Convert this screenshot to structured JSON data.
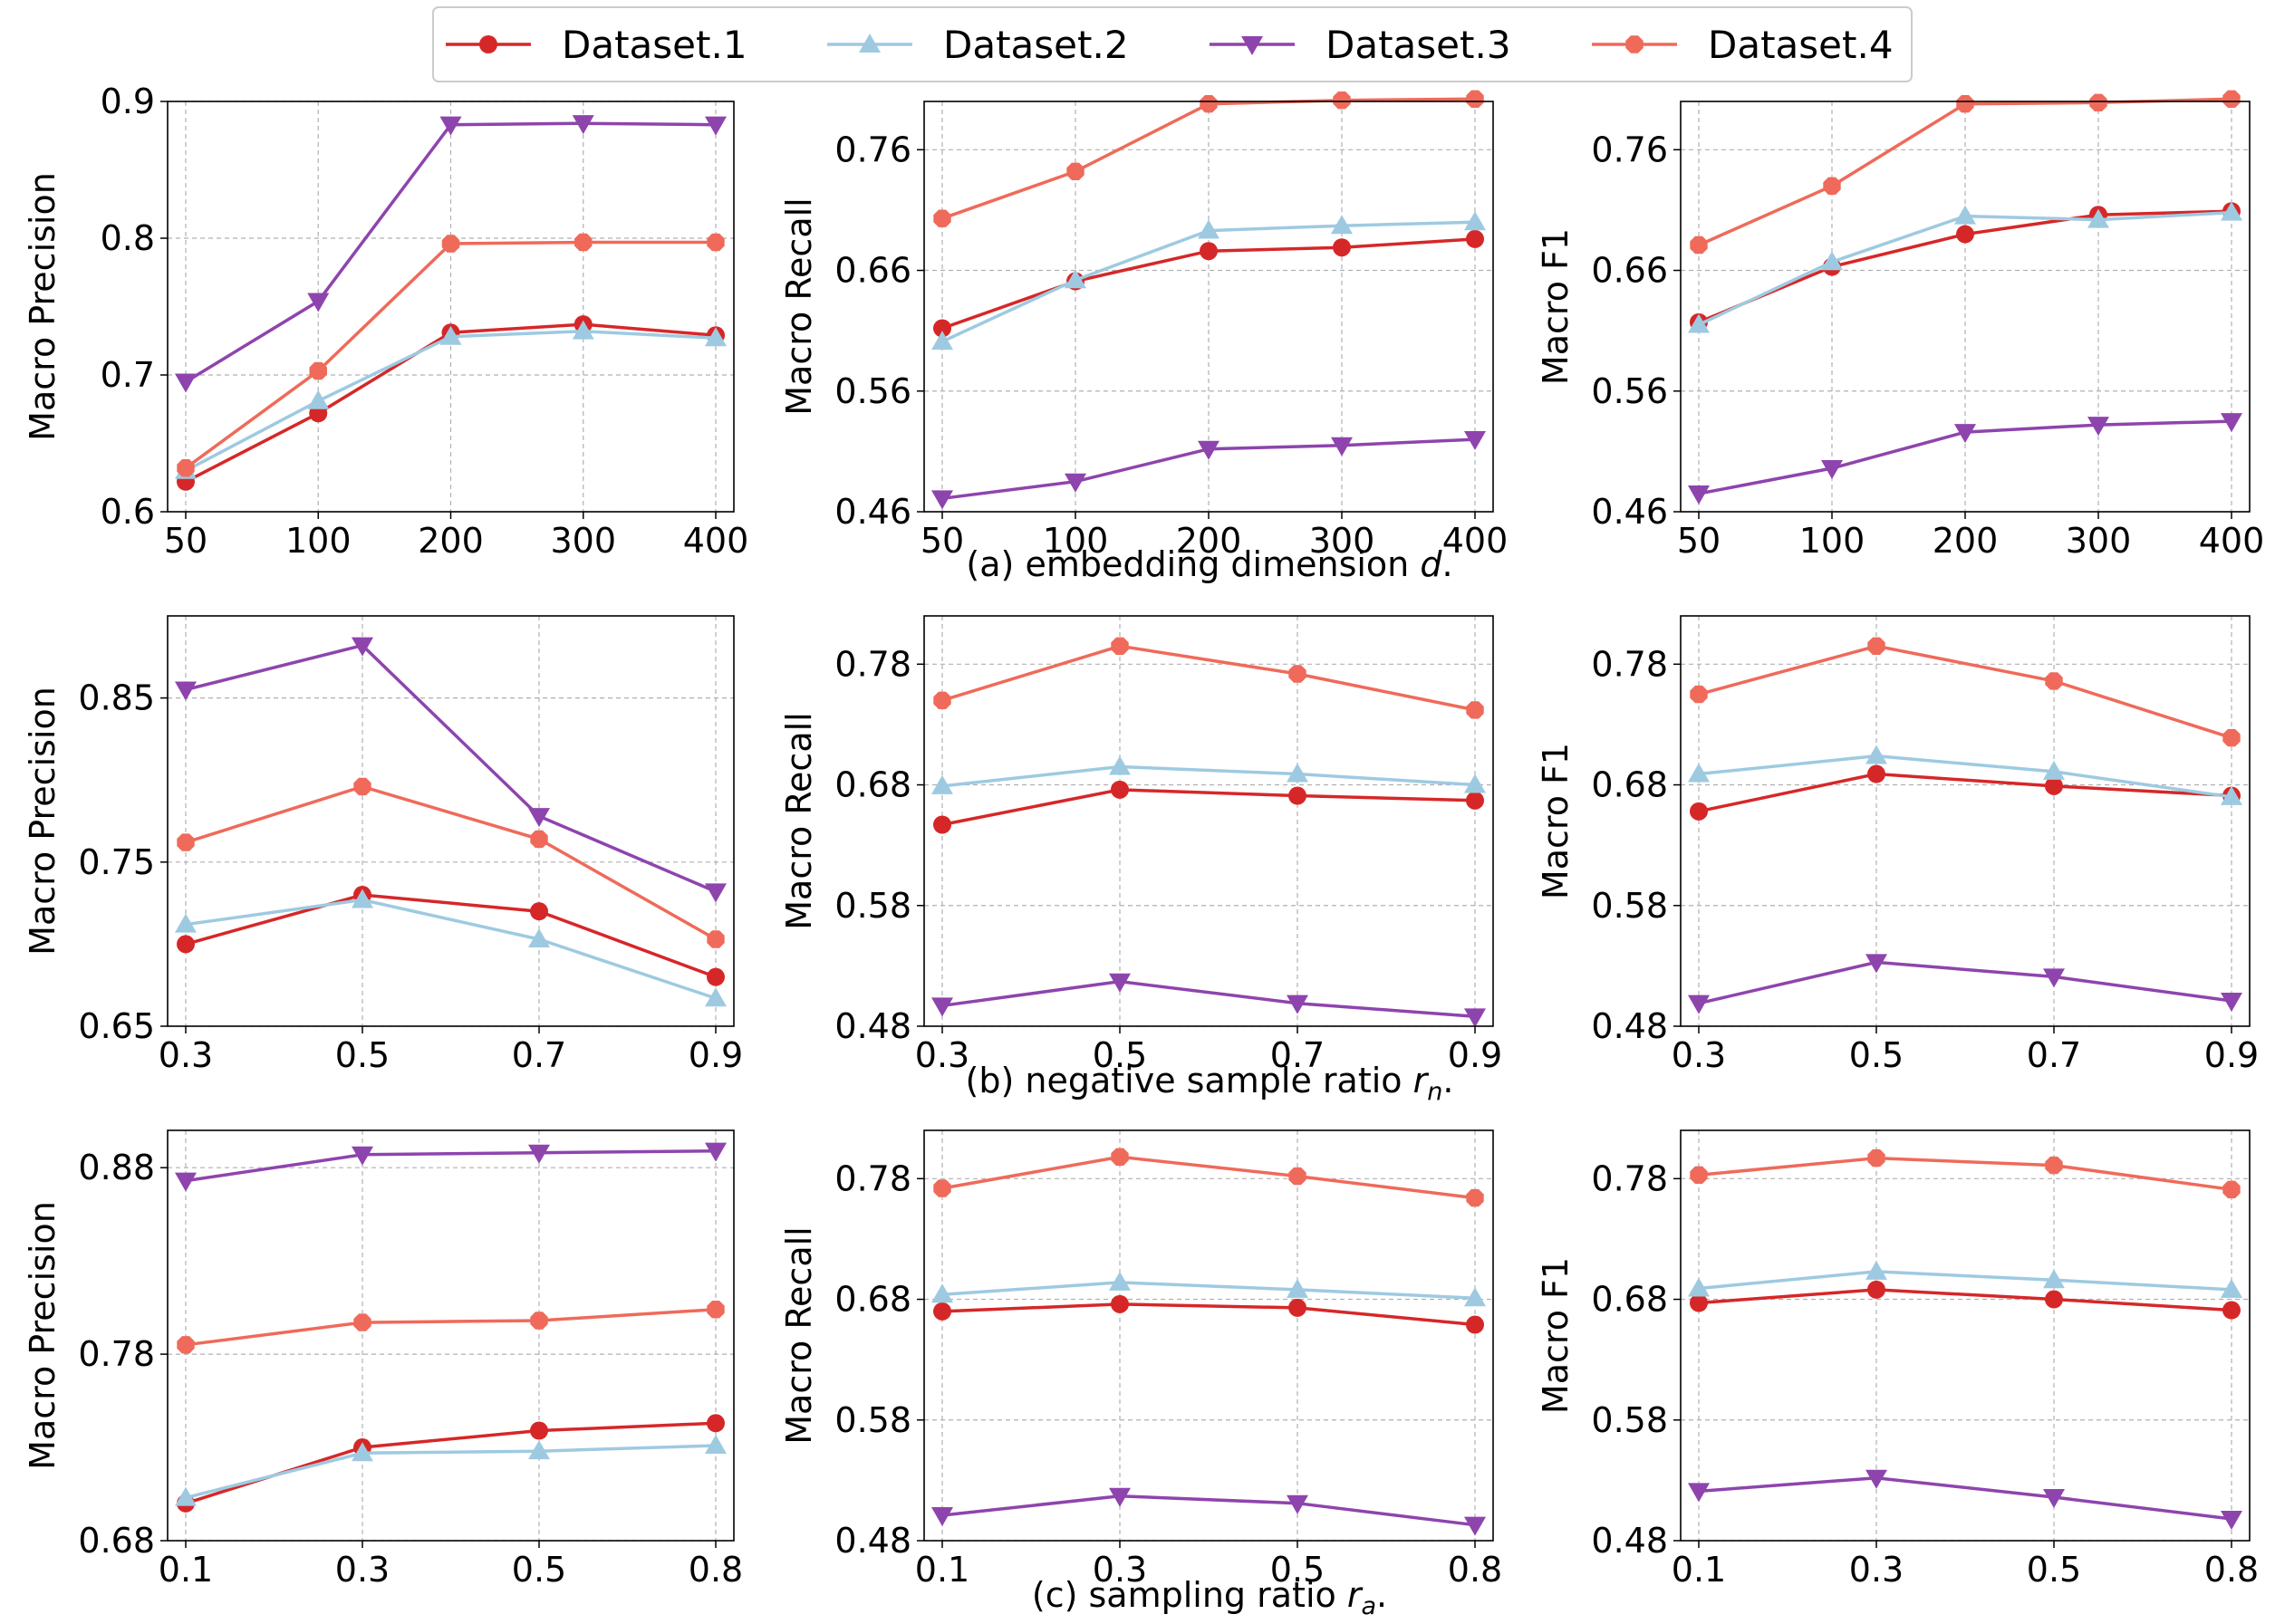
{
  "legend": [
    {
      "name": "Dataset.1",
      "color": "#d62728",
      "marker": "circle"
    },
    {
      "name": "Dataset.2",
      "color": "#9ecae1",
      "marker": "triangle-up"
    },
    {
      "name": "Dataset.3",
      "color": "#8e44ad",
      "marker": "triangle-down"
    },
    {
      "name": "Dataset.4",
      "color": "#ef6a5a",
      "marker": "octagon"
    }
  ],
  "captions": [
    {
      "prefix": "(a) embedding dimension ",
      "sym": "d",
      "sub": "",
      "suffix": "."
    },
    {
      "prefix": "(b) negative sample ratio ",
      "sym": "r",
      "sub": "n",
      "suffix": "."
    },
    {
      "prefix": "(c) sampling ratio ",
      "sym": "r",
      "sub": "a",
      "suffix": "."
    }
  ],
  "chart_data": [
    {
      "type": "line",
      "ylabel": "Macro Precision",
      "categories": [
        "50",
        "100",
        "200",
        "300",
        "400"
      ],
      "ylim": [
        0.6,
        0.9
      ],
      "yticks": [
        "0.6",
        "0.7",
        "0.8",
        "0.9"
      ],
      "series": [
        {
          "name": "Dataset.1",
          "values": [
            0.622,
            0.672,
            0.731,
            0.737,
            0.729
          ]
        },
        {
          "name": "Dataset.2",
          "values": [
            0.63,
            0.681,
            0.728,
            0.732,
            0.727
          ]
        },
        {
          "name": "Dataset.3",
          "values": [
            0.695,
            0.754,
            0.883,
            0.884,
            0.883
          ]
        },
        {
          "name": "Dataset.4",
          "values": [
            0.632,
            0.703,
            0.796,
            0.797,
            0.797
          ]
        }
      ]
    },
    {
      "type": "line",
      "ylabel": "Macro Recall",
      "categories": [
        "50",
        "100",
        "200",
        "300",
        "400"
      ],
      "ylim": [
        0.46,
        0.8
      ],
      "yticks": [
        "0.46",
        "0.56",
        "0.66",
        "0.76"
      ],
      "series": [
        {
          "name": "Dataset.1",
          "values": [
            0.612,
            0.651,
            0.676,
            0.679,
            0.686
          ]
        },
        {
          "name": "Dataset.2",
          "values": [
            0.601,
            0.652,
            0.693,
            0.697,
            0.7
          ]
        },
        {
          "name": "Dataset.3",
          "values": [
            0.471,
            0.485,
            0.512,
            0.515,
            0.52
          ]
        },
        {
          "name": "Dataset.4",
          "values": [
            0.703,
            0.742,
            0.798,
            0.801,
            0.802
          ]
        }
      ]
    },
    {
      "type": "line",
      "ylabel": "Macro F1",
      "categories": [
        "50",
        "100",
        "200",
        "300",
        "400"
      ],
      "ylim": [
        0.46,
        0.8
      ],
      "yticks": [
        "0.46",
        "0.56",
        "0.66",
        "0.76"
      ],
      "series": [
        {
          "name": "Dataset.1",
          "values": [
            0.617,
            0.663,
            0.69,
            0.706,
            0.709
          ]
        },
        {
          "name": "Dataset.2",
          "values": [
            0.615,
            0.667,
            0.705,
            0.702,
            0.708
          ]
        },
        {
          "name": "Dataset.3",
          "values": [
            0.475,
            0.496,
            0.526,
            0.532,
            0.535
          ]
        },
        {
          "name": "Dataset.4",
          "values": [
            0.681,
            0.73,
            0.798,
            0.799,
            0.802
          ]
        }
      ]
    },
    {
      "type": "line",
      "ylabel": "Macro Precision",
      "categories": [
        "0.3",
        "0.5",
        "0.7",
        "0.9"
      ],
      "ylim": [
        0.65,
        0.9
      ],
      "yticks": [
        "0.65",
        "0.75",
        "0.85"
      ],
      "series": [
        {
          "name": "Dataset.1",
          "values": [
            0.7,
            0.73,
            0.72,
            0.68
          ]
        },
        {
          "name": "Dataset.2",
          "values": [
            0.712,
            0.727,
            0.703,
            0.667
          ]
        },
        {
          "name": "Dataset.3",
          "values": [
            0.855,
            0.882,
            0.778,
            0.732
          ]
        },
        {
          "name": "Dataset.4",
          "values": [
            0.762,
            0.796,
            0.764,
            0.703
          ]
        }
      ]
    },
    {
      "type": "line",
      "ylabel": "Macro Recall",
      "categories": [
        "0.3",
        "0.5",
        "0.7",
        "0.9"
      ],
      "ylim": [
        0.48,
        0.82
      ],
      "yticks": [
        "0.48",
        "0.58",
        "0.68",
        "0.78"
      ],
      "series": [
        {
          "name": "Dataset.1",
          "values": [
            0.647,
            0.676,
            0.671,
            0.667
          ]
        },
        {
          "name": "Dataset.2",
          "values": [
            0.679,
            0.695,
            0.689,
            0.68
          ]
        },
        {
          "name": "Dataset.3",
          "values": [
            0.497,
            0.517,
            0.499,
            0.488
          ]
        },
        {
          "name": "Dataset.4",
          "values": [
            0.75,
            0.795,
            0.772,
            0.742
          ]
        }
      ]
    },
    {
      "type": "line",
      "ylabel": "Macro F1",
      "categories": [
        "0.3",
        "0.5",
        "0.7",
        "0.9"
      ],
      "ylim": [
        0.48,
        0.82
      ],
      "yticks": [
        "0.48",
        "0.58",
        "0.68",
        "0.78"
      ],
      "series": [
        {
          "name": "Dataset.1",
          "values": [
            0.658,
            0.689,
            0.679,
            0.671
          ]
        },
        {
          "name": "Dataset.2",
          "values": [
            0.689,
            0.704,
            0.691,
            0.67
          ]
        },
        {
          "name": "Dataset.3",
          "values": [
            0.499,
            0.533,
            0.521,
            0.501
          ]
        },
        {
          "name": "Dataset.4",
          "values": [
            0.755,
            0.795,
            0.766,
            0.719
          ]
        }
      ]
    },
    {
      "type": "line",
      "ylabel": "Macro Precision",
      "categories": [
        "0.1",
        "0.3",
        "0.5",
        "0.8"
      ],
      "ylim": [
        0.68,
        0.9
      ],
      "yticks": [
        "0.68",
        "0.78",
        "0.88"
      ],
      "series": [
        {
          "name": "Dataset.1",
          "values": [
            0.7,
            0.73,
            0.739,
            0.743
          ]
        },
        {
          "name": "Dataset.2",
          "values": [
            0.703,
            0.727,
            0.728,
            0.731
          ]
        },
        {
          "name": "Dataset.3",
          "values": [
            0.873,
            0.887,
            0.888,
            0.889
          ]
        },
        {
          "name": "Dataset.4",
          "values": [
            0.785,
            0.797,
            0.798,
            0.804
          ]
        }
      ]
    },
    {
      "type": "line",
      "ylabel": "Macro Recall",
      "categories": [
        "0.1",
        "0.3",
        "0.5",
        "0.8"
      ],
      "ylim": [
        0.48,
        0.82
      ],
      "yticks": [
        "0.48",
        "0.58",
        "0.68",
        "0.78"
      ],
      "series": [
        {
          "name": "Dataset.1",
          "values": [
            0.67,
            0.676,
            0.673,
            0.659
          ]
        },
        {
          "name": "Dataset.2",
          "values": [
            0.684,
            0.694,
            0.688,
            0.681
          ]
        },
        {
          "name": "Dataset.3",
          "values": [
            0.501,
            0.517,
            0.511,
            0.493
          ]
        },
        {
          "name": "Dataset.4",
          "values": [
            0.772,
            0.798,
            0.782,
            0.764
          ]
        }
      ]
    },
    {
      "type": "line",
      "ylabel": "Macro F1",
      "categories": [
        "0.1",
        "0.3",
        "0.5",
        "0.8"
      ],
      "ylim": [
        0.48,
        0.82
      ],
      "yticks": [
        "0.48",
        "0.58",
        "0.68",
        "0.78"
      ],
      "series": [
        {
          "name": "Dataset.1",
          "values": [
            0.677,
            0.688,
            0.68,
            0.671
          ]
        },
        {
          "name": "Dataset.2",
          "values": [
            0.689,
            0.703,
            0.696,
            0.688
          ]
        },
        {
          "name": "Dataset.3",
          "values": [
            0.521,
            0.532,
            0.516,
            0.498
          ]
        },
        {
          "name": "Dataset.4",
          "values": [
            0.783,
            0.797,
            0.791,
            0.771
          ]
        }
      ]
    }
  ]
}
